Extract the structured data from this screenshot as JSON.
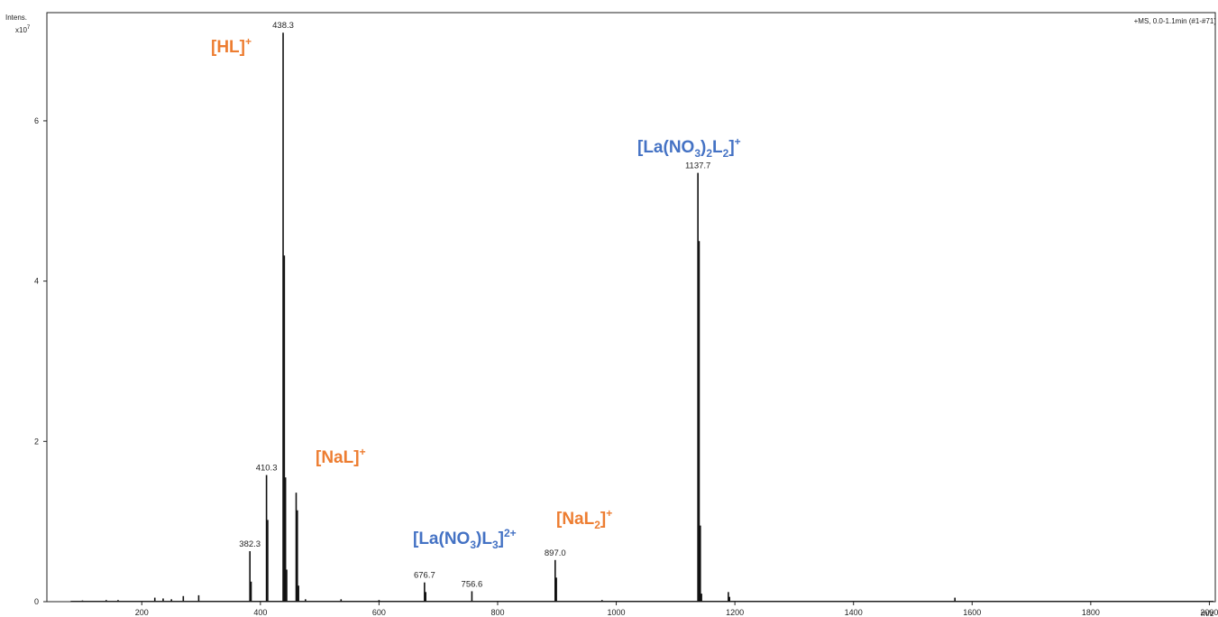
{
  "chart_data": {
    "type": "line",
    "y_axis_label": "Intens.",
    "y_axis_multiplier": "x10",
    "y_axis_multiplier_exp": "7",
    "x_axis_unit": "m/z",
    "scan_info": "+MS, 0.0-1.1min (#1-#71)",
    "xlim": [
      40,
      2010
    ],
    "ylim": [
      0,
      7.35
    ],
    "x_ticks": [
      200,
      400,
      600,
      800,
      1000,
      1200,
      1400,
      1600,
      1800,
      2000
    ],
    "x_tick_labels": [
      "200",
      "400",
      "600",
      "800",
      "1000",
      "1200",
      "1400",
      "1600",
      "1800",
      "2000"
    ],
    "y_ticks": [
      0,
      2,
      4,
      6
    ],
    "y_tick_labels": [
      "0",
      "2",
      "4",
      "6"
    ],
    "peaks": [
      {
        "mz": 100,
        "intensity": 0.015
      },
      {
        "mz": 140,
        "intensity": 0.02
      },
      {
        "mz": 160,
        "intensity": 0.02
      },
      {
        "mz": 222,
        "intensity": 0.05
      },
      {
        "mz": 236,
        "intensity": 0.04
      },
      {
        "mz": 250,
        "intensity": 0.03
      },
      {
        "mz": 270,
        "intensity": 0.07
      },
      {
        "mz": 296,
        "intensity": 0.08
      },
      {
        "mz": 382.3,
        "intensity": 0.63
      },
      {
        "mz": 384.3,
        "intensity": 0.25
      },
      {
        "mz": 410.3,
        "intensity": 1.58
      },
      {
        "mz": 412.3,
        "intensity": 1.02
      },
      {
        "mz": 438.3,
        "intensity": 7.1
      },
      {
        "mz": 440.3,
        "intensity": 4.32
      },
      {
        "mz": 442.3,
        "intensity": 1.55
      },
      {
        "mz": 444.3,
        "intensity": 0.4
      },
      {
        "mz": 460.3,
        "intensity": 1.36
      },
      {
        "mz": 462.3,
        "intensity": 1.14
      },
      {
        "mz": 464.3,
        "intensity": 0.2
      },
      {
        "mz": 476,
        "intensity": 0.03
      },
      {
        "mz": 536,
        "intensity": 0.03
      },
      {
        "mz": 600,
        "intensity": 0.02
      },
      {
        "mz": 676.7,
        "intensity": 0.24
      },
      {
        "mz": 678.7,
        "intensity": 0.12
      },
      {
        "mz": 756.6,
        "intensity": 0.13
      },
      {
        "mz": 897.0,
        "intensity": 0.52
      },
      {
        "mz": 899.0,
        "intensity": 0.3
      },
      {
        "mz": 976,
        "intensity": 0.02
      },
      {
        "mz": 1137.7,
        "intensity": 5.35
      },
      {
        "mz": 1139.7,
        "intensity": 4.5
      },
      {
        "mz": 1141.7,
        "intensity": 0.95
      },
      {
        "mz": 1143.7,
        "intensity": 0.1
      },
      {
        "mz": 1189,
        "intensity": 0.12
      },
      {
        "mz": 1191,
        "intensity": 0.06
      },
      {
        "mz": 1571,
        "intensity": 0.05
      }
    ],
    "peak_labels": [
      {
        "mz": 438.3,
        "text": "438.3",
        "intensity": 7.1
      },
      {
        "mz": 410.3,
        "text": "410.3",
        "intensity": 1.58
      },
      {
        "mz": 382.3,
        "text": "382.3",
        "intensity": 0.63
      },
      {
        "mz": 676.7,
        "text": "676.7",
        "intensity": 0.24
      },
      {
        "mz": 756.6,
        "text": "756.6",
        "intensity": 0.13
      },
      {
        "mz": 897.0,
        "text": "897.0",
        "intensity": 0.52
      },
      {
        "mz": 1137.7,
        "text": "1137.7",
        "intensity": 5.35
      }
    ],
    "annotations": [
      {
        "id": "hl",
        "text": "[HL]",
        "sup": "+",
        "color": "#ED7D31"
      },
      {
        "id": "nal",
        "text": "[NaL]",
        "sup": "+",
        "color": "#ED7D31"
      },
      {
        "id": "nal2",
        "text": "[NaL",
        "sub": "2",
        "close": "]",
        "sup": "+",
        "color": "#ED7D31"
      },
      {
        "id": "la-no3-l3",
        "text": "[La(NO",
        "sub": "3",
        "mid": ")L",
        "sub2": "3",
        "close": "]",
        "sup": "2+",
        "color": "#4472C4"
      },
      {
        "id": "la-no3-2-l2",
        "text": "[La(NO",
        "sub": "3",
        "mid": ")",
        "sub2": "2",
        "mid2": "L",
        "sub3": "2",
        "close": "]",
        "sup": "+",
        "color": "#4472C4"
      }
    ]
  }
}
